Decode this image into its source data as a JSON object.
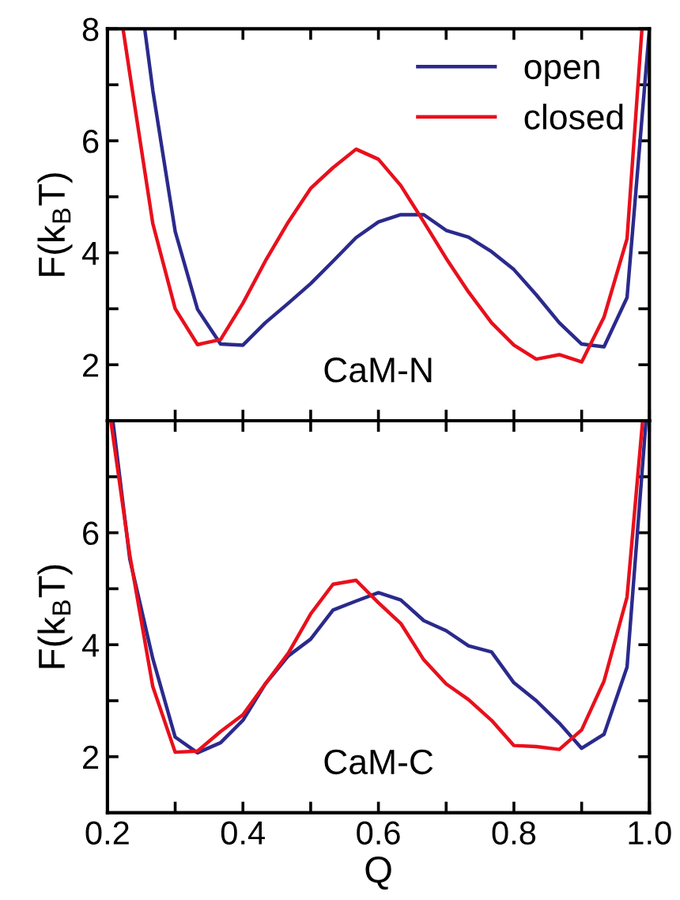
{
  "chart_data": [
    {
      "type": "line",
      "ylabel": "F(k$_{B}$T)",
      "annotations": [
        "CaM-N"
      ],
      "xlim": [
        0.2,
        1.0
      ],
      "ylim": [
        1,
        8
      ],
      "xticks": [
        {
          "value": 0.2,
          "label": null
        },
        {
          "value": 0.3,
          "label": null
        },
        {
          "value": 0.4,
          "label": null
        },
        {
          "value": 0.5,
          "label": null
        },
        {
          "value": 0.6,
          "label": null
        },
        {
          "value": 0.7,
          "label": null
        },
        {
          "value": 0.8,
          "label": null
        },
        {
          "value": 0.9,
          "label": null
        },
        {
          "value": 1.0,
          "label": null
        }
      ],
      "yticks": [
        2,
        {
          "value": 3,
          "label": null
        },
        4,
        {
          "value": 5,
          "label": null
        },
        6,
        {
          "value": 7,
          "label": null
        },
        8
      ],
      "tick_labels": "y",
      "legend": "top right",
      "grid": false,
      "series": [
        {
          "name": "open",
          "color": "#2b2a8c",
          "x": [
            0.255,
            0.267,
            0.3,
            0.333,
            0.367,
            0.4,
            0.433,
            0.467,
            0.5,
            0.533,
            0.567,
            0.6,
            0.633,
            0.667,
            0.7,
            0.733,
            0.767,
            0.8,
            0.833,
            0.867,
            0.9,
            0.933,
            0.967,
            1.0
          ],
          "values": [
            8,
            6.9,
            4.38,
            2.99,
            2.37,
            2.35,
            2.75,
            3.1,
            3.45,
            3.85,
            4.27,
            4.55,
            4.68,
            4.68,
            4.4,
            4.28,
            4.02,
            3.7,
            3.25,
            2.75,
            2.37,
            2.32,
            3.2,
            8
          ]
        },
        {
          "name": "closed",
          "color": "#e8101c",
          "x": [
            0.223,
            0.233,
            0.267,
            0.3,
            0.333,
            0.367,
            0.4,
            0.433,
            0.467,
            0.5,
            0.533,
            0.567,
            0.6,
            0.633,
            0.667,
            0.7,
            0.733,
            0.767,
            0.8,
            0.833,
            0.867,
            0.9,
            0.933,
            0.967,
            0.989
          ],
          "values": [
            8,
            7.2,
            4.52,
            3.0,
            2.36,
            2.45,
            3.1,
            3.85,
            4.55,
            5.15,
            5.52,
            5.85,
            5.67,
            5.2,
            4.55,
            3.9,
            3.3,
            2.75,
            2.35,
            2.1,
            2.18,
            2.05,
            2.85,
            4.25,
            8
          ]
        }
      ]
    },
    {
      "type": "line",
      "xlabel": "Q",
      "ylabel": "F(k$_{B}$T)",
      "annotations": [
        "CaM-C"
      ],
      "xlim": [
        0.2,
        1.0
      ],
      "ylim": [
        1,
        8
      ],
      "xticks": [
        0.2,
        {
          "value": 0.3,
          "label": null
        },
        0.4,
        {
          "value": 0.5,
          "label": null
        },
        0.6,
        {
          "value": 0.7,
          "label": null
        },
        0.8,
        {
          "value": 0.9,
          "label": null
        },
        {
          "value": 1.0,
          "label": "1.0"
        }
      ],
      "yticks": [
        2,
        {
          "value": 3,
          "label": null
        },
        4,
        {
          "value": 5,
          "label": null
        },
        6,
        {
          "value": 7,
          "label": null
        },
        {
          "value": 8,
          "label": null
        }
      ],
      "grid": false,
      "series": [
        {
          "color": "#2b2a8c",
          "x": [
            0.208,
            0.233,
            0.267,
            0.3,
            0.333,
            0.367,
            0.4,
            0.433,
            0.467,
            0.5,
            0.533,
            0.567,
            0.6,
            0.633,
            0.667,
            0.7,
            0.733,
            0.767,
            0.8,
            0.833,
            0.867,
            0.9,
            0.933,
            0.967,
            0.995
          ],
          "values": [
            8,
            5.53,
            3.75,
            2.35,
            2.07,
            2.25,
            2.65,
            3.3,
            3.8,
            4.1,
            4.62,
            4.78,
            4.93,
            4.8,
            4.43,
            4.25,
            3.98,
            3.87,
            3.32,
            3.0,
            2.6,
            2.15,
            2.4,
            3.6,
            8
          ]
        },
        {
          "color": "#e8101c",
          "x": [
            0.205,
            0.233,
            0.267,
            0.3,
            0.333,
            0.367,
            0.4,
            0.433,
            0.467,
            0.5,
            0.533,
            0.567,
            0.6,
            0.633,
            0.667,
            0.7,
            0.733,
            0.767,
            0.8,
            0.833,
            0.867,
            0.9,
            0.933,
            0.967,
            0.99
          ],
          "values": [
            8,
            5.6,
            3.25,
            2.08,
            2.1,
            2.45,
            2.75,
            3.3,
            3.85,
            4.55,
            5.08,
            5.15,
            4.75,
            4.38,
            3.73,
            3.3,
            3.02,
            2.65,
            2.2,
            2.18,
            2.13,
            2.48,
            3.35,
            4.85,
            8
          ]
        }
      ]
    }
  ]
}
